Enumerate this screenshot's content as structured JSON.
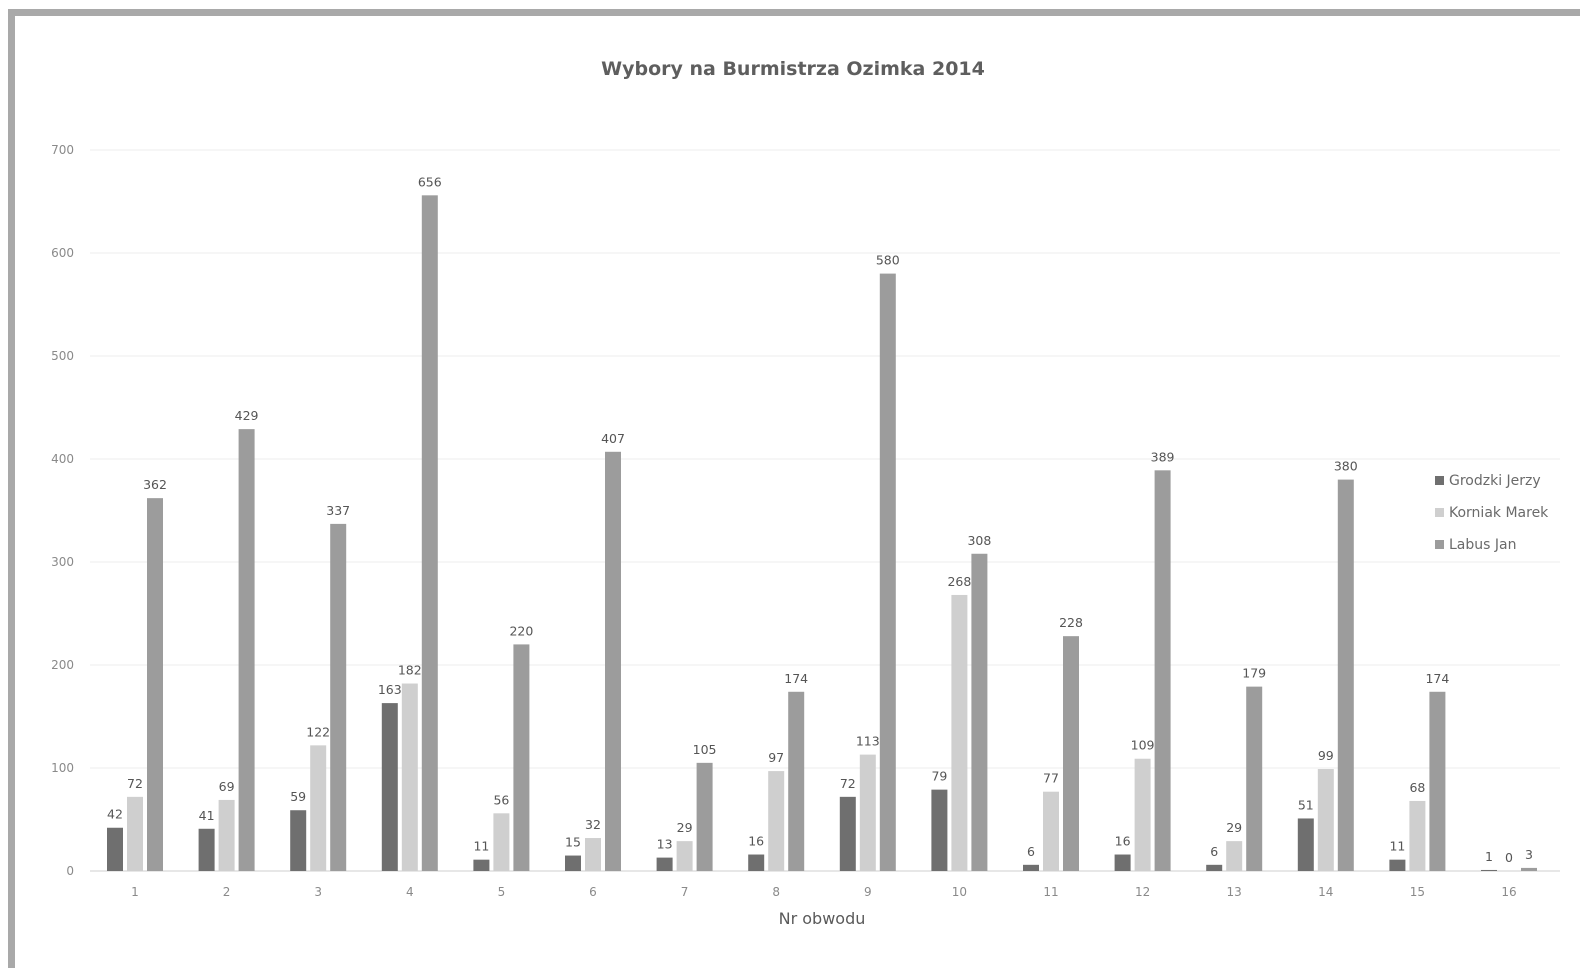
{
  "chart_data": {
    "type": "bar",
    "title": "Wybory na Burmistrza Ozimka 2014",
    "xlabel": "Nr obwodu",
    "ylabel": "",
    "ylim": [
      0,
      700
    ],
    "yticks": [
      0,
      100,
      200,
      300,
      400,
      500,
      600,
      700
    ],
    "grid": true,
    "legend_position": "right",
    "categories": [
      "1",
      "2",
      "3",
      "4",
      "5",
      "6",
      "7",
      "8",
      "9",
      "10",
      "11",
      "12",
      "13",
      "14",
      "15",
      "16"
    ],
    "series": [
      {
        "name": "Grodzki Jerzy",
        "color": "#6f6f6f",
        "values": [
          42,
          41,
          59,
          163,
          11,
          15,
          13,
          16,
          72,
          79,
          6,
          16,
          6,
          51,
          11,
          1
        ]
      },
      {
        "name": "Korniak Marek",
        "color": "#cfcfcf",
        "values": [
          72,
          69,
          122,
          182,
          56,
          32,
          29,
          97,
          113,
          268,
          77,
          109,
          29,
          99,
          68,
          0
        ]
      },
      {
        "name": "Labus Jan",
        "color": "#9c9c9c",
        "values": [
          362,
          429,
          337,
          656,
          220,
          407,
          105,
          174,
          580,
          308,
          228,
          389,
          179,
          380,
          174,
          3
        ]
      }
    ]
  }
}
